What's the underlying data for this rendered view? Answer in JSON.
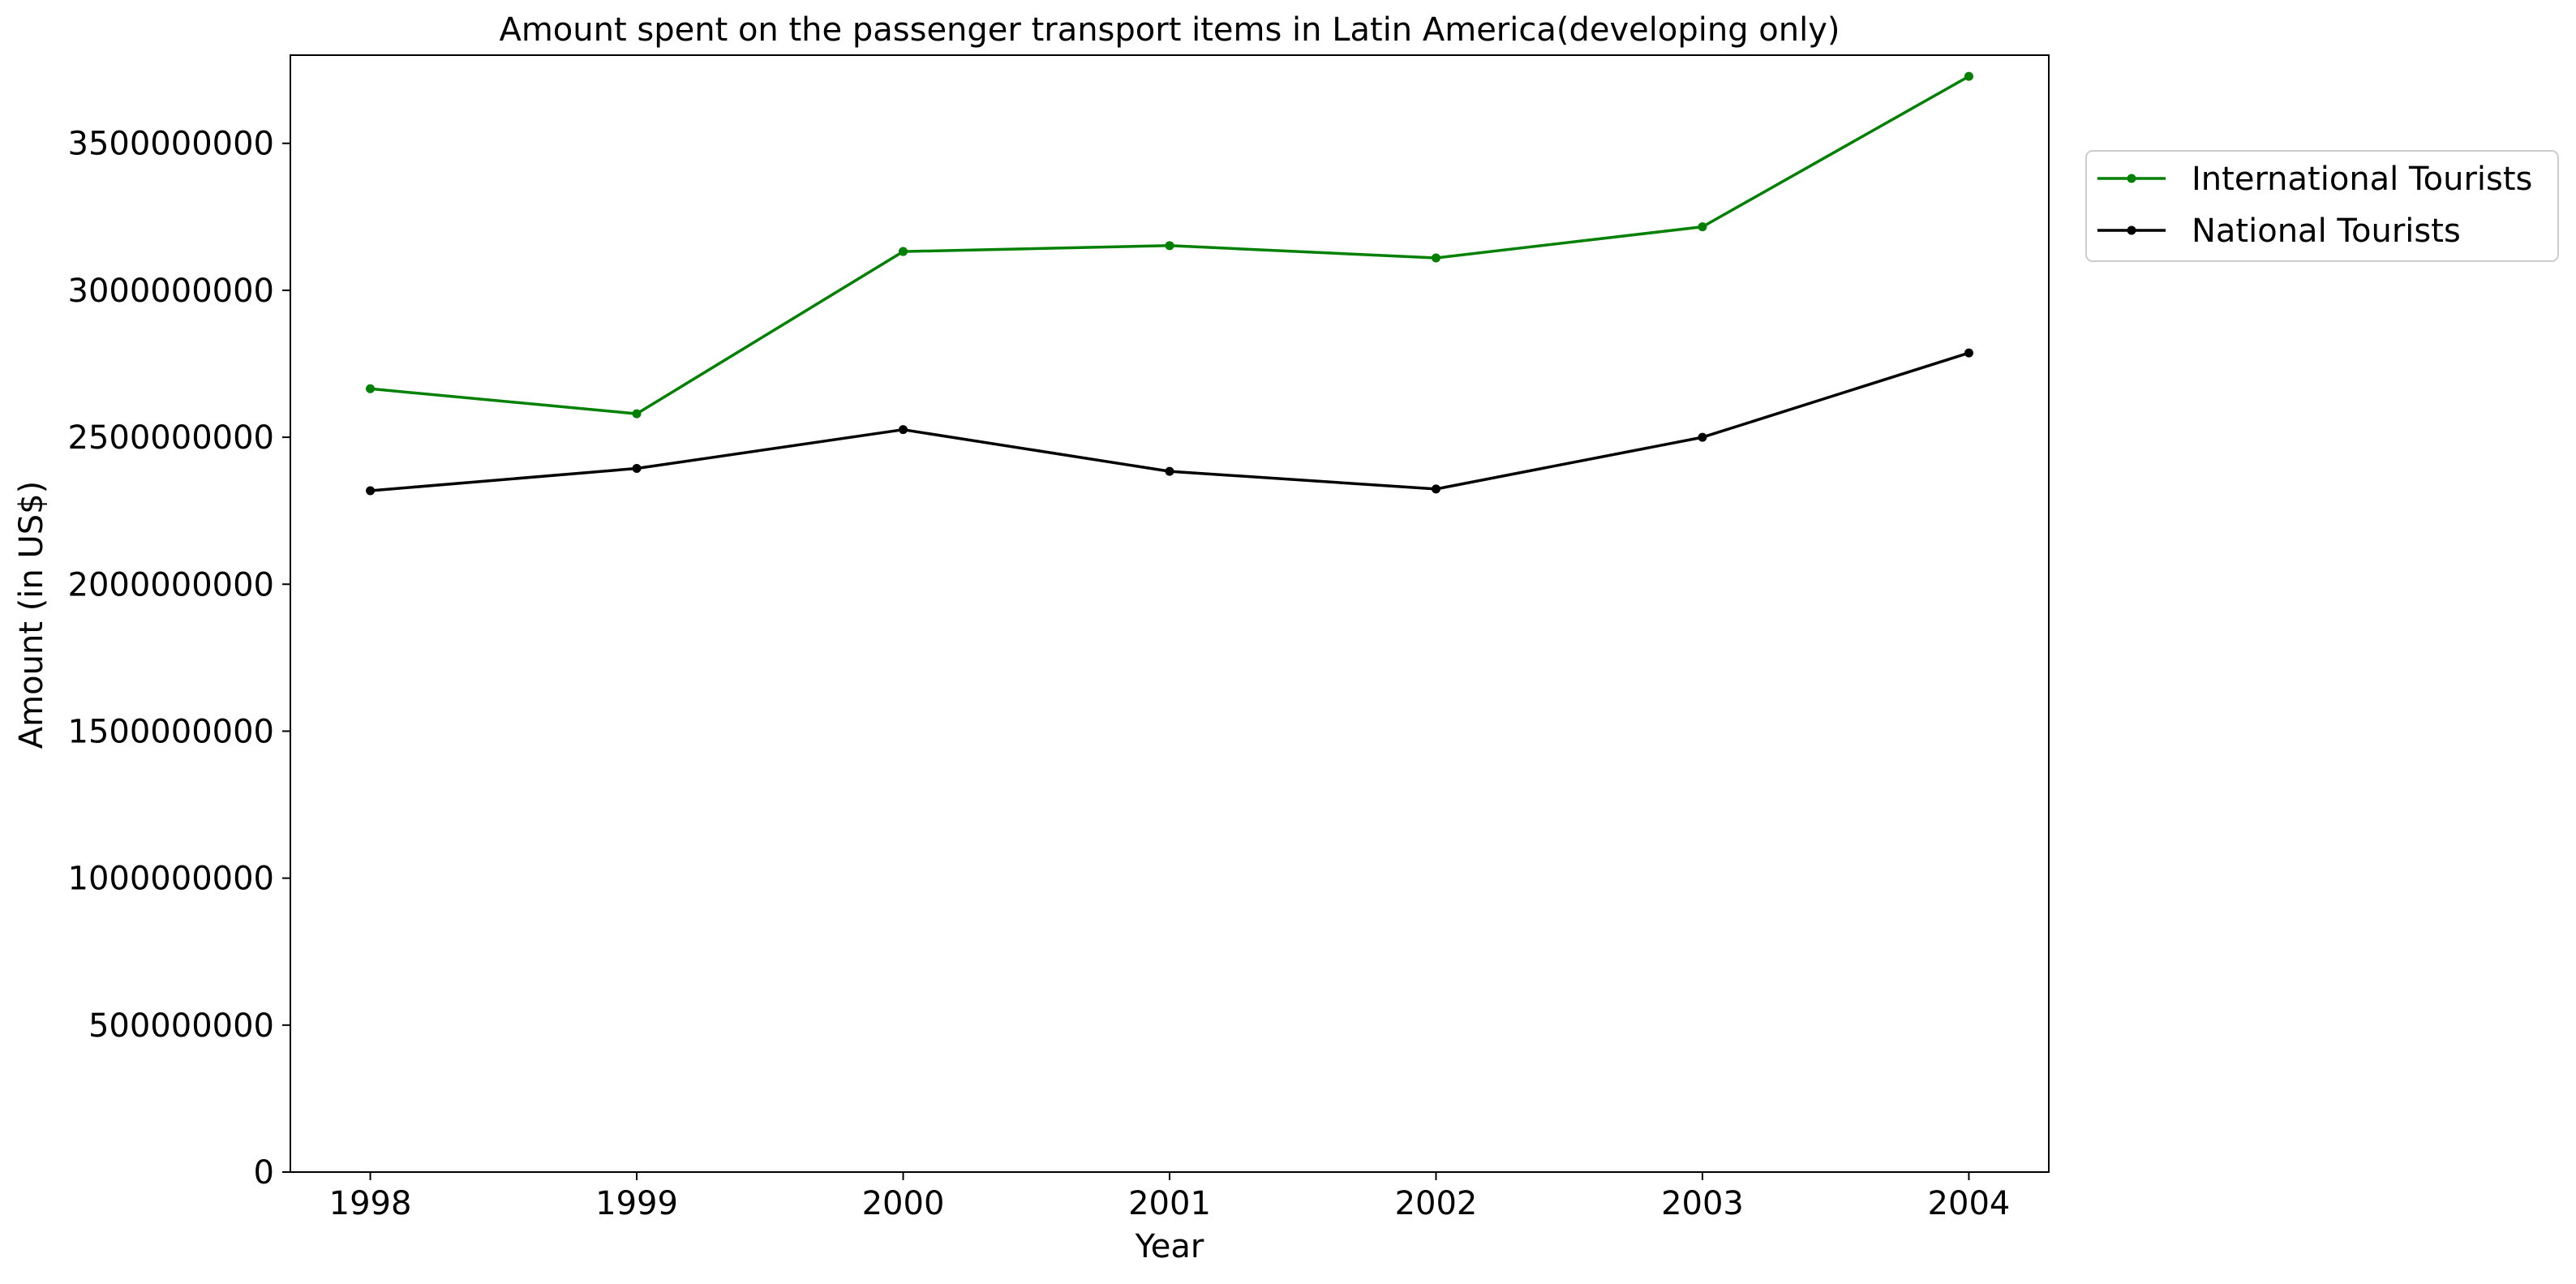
{
  "chart_data": {
    "type": "line",
    "title": "Amount spent on the passenger transport items in Latin America(developing only)",
    "xlabel": "Year",
    "ylabel": "Amount (in US$)",
    "x": [
      "1998",
      "1999",
      "2000",
      "2001",
      "2002",
      "2003",
      "2004"
    ],
    "xlim": [
      1997.7,
      2004.3
    ],
    "ylim": [
      0,
      3800000000
    ],
    "yticks": [
      0,
      500000000,
      1000000000,
      1500000000,
      2000000000,
      2500000000,
      3000000000,
      3500000000
    ],
    "ytick_labels": [
      "0",
      "500000000",
      "1000000000",
      "1500000000",
      "2000000000",
      "2500000000",
      "3000000000",
      "3500000000"
    ],
    "grid": false,
    "legend_position": "right, outside the plot, near the top",
    "series": [
      {
        "name": "International Tourists",
        "color": "#008000",
        "marker": "dot",
        "values": [
          2665000000,
          2580000000,
          3132000000,
          3152000000,
          3110000000,
          3216000000,
          3728000000
        ]
      },
      {
        "name": "National Tourists",
        "color": "#000000",
        "marker": "dot",
        "values": [
          2318000000,
          2394000000,
          2526000000,
          2384000000,
          2324000000,
          2500000000,
          2787000000
        ]
      }
    ]
  }
}
